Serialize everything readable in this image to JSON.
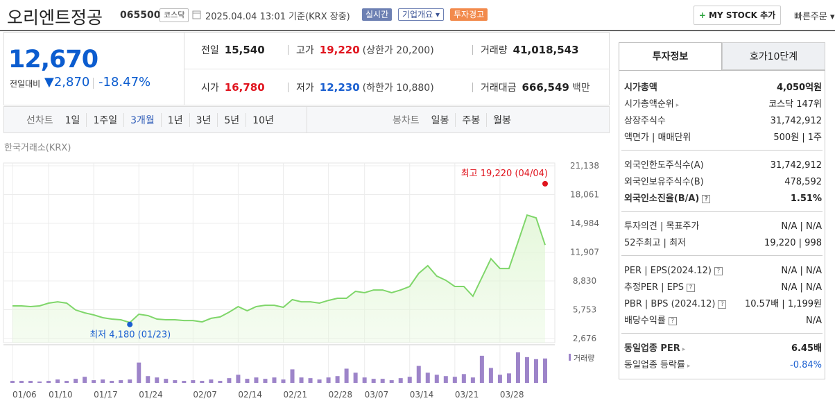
{
  "header": {
    "name": "오리엔트정공",
    "code": "065500",
    "market": "코스닥",
    "datetime": "2025.04.04 13:01 기준(KRX 장중)",
    "tags": [
      "실시간",
      "기업개요",
      "투자경고"
    ],
    "mystock": "MY STOCK 추가",
    "quick_order": "빠른주문"
  },
  "price": {
    "current": "12,670",
    "change_label": "전일대비",
    "change": "2,870",
    "change_pct": "-18.47%",
    "color": "#0b5ccf"
  },
  "summary": [
    {
      "label": "전일",
      "value": "15,540",
      "color": "#222"
    },
    {
      "label": "고가",
      "value": "19,220",
      "note": "(상한가 20,200)",
      "color": "#e0141e"
    },
    {
      "label": "거래량",
      "value": "41,018,543",
      "color": "#222"
    },
    {
      "label": "시가",
      "value": "16,780",
      "color": "#e0141e"
    },
    {
      "label": "저가",
      "value": "12,230",
      "note": "(하한가 10,880)",
      "color": "#1a5fd0"
    },
    {
      "label": "거래대금",
      "value": "666,549",
      "note": "백만",
      "color": "#222"
    }
  ],
  "tabs": {
    "line_label": "선차트",
    "line": [
      "1일",
      "1주일",
      "3개월",
      "1년",
      "3년",
      "5년",
      "10년"
    ],
    "active": "3개월",
    "candle_label": "봉차트",
    "candle": [
      "일봉",
      "주봉",
      "월봉"
    ]
  },
  "chart_data": {
    "type": "line",
    "source": "한국거래소(KRX)",
    "categories": [
      "01/06",
      null,
      null,
      null,
      "01/10",
      null,
      null,
      null,
      null,
      "01/17",
      null,
      null,
      null,
      null,
      "01/24",
      null,
      null,
      null,
      null,
      null,
      "02/07",
      null,
      null,
      null,
      null,
      "02/14",
      null,
      null,
      null,
      null,
      "02/21",
      null,
      null,
      null,
      null,
      "02/28",
      null,
      null,
      null,
      "03/07",
      null,
      null,
      null,
      null,
      "03/14",
      null,
      null,
      null,
      null,
      "03/21",
      null,
      null,
      null,
      null,
      "03/28",
      null,
      null,
      null,
      null,
      null
    ],
    "values": [
      6160,
      6160,
      6090,
      6160,
      6460,
      6600,
      6460,
      5720,
      5420,
      5200,
      4900,
      4750,
      4680,
      4380,
      5270,
      5120,
      4750,
      4680,
      4680,
      4600,
      4600,
      4450,
      4830,
      4980,
      5490,
      6090,
      5640,
      6090,
      6230,
      6230,
      6010,
      6830,
      6600,
      6600,
      6460,
      6750,
      6980,
      6980,
      7720,
      7570,
      7860,
      7860,
      7570,
      7860,
      8240,
      9640,
      10460,
      9350,
      8900,
      8240,
      8240,
      7200,
      9200,
      11200,
      10160,
      10160,
      12980,
      15870,
      15580,
      12670
    ],
    "color": "#7fd66a",
    "fill": "#e3f7d8",
    "ylim": [
      2676,
      21138
    ],
    "yticks": [
      {
        "value": 2676,
        "label": "2,676"
      },
      {
        "value": 5753,
        "label": "5,753"
      },
      {
        "value": 8830,
        "label": "8,830"
      },
      {
        "value": 11907,
        "label": "11,907"
      },
      {
        "value": 14984,
        "label": "14,984"
      },
      {
        "value": 18061,
        "label": "18,061"
      },
      {
        "value": 21138,
        "label": "21,138"
      }
    ],
    "grid": true,
    "volume": {
      "name": "거래량",
      "color": "#9d84c9",
      "values": [
        3420000,
        3420000,
        3420000,
        2280000,
        3420000,
        5700000,
        3420000,
        6840000,
        10260000,
        4560000,
        5700000,
        3420000,
        4560000,
        5700000,
        34200000,
        11400000,
        9120000,
        6840000,
        4560000,
        3420000,
        4560000,
        3420000,
        5700000,
        3420000,
        7980000,
        13680000,
        6840000,
        9120000,
        6840000,
        9120000,
        5700000,
        22800000,
        9120000,
        7980000,
        5700000,
        9120000,
        11400000,
        23940000,
        17100000,
        9120000,
        6840000,
        6840000,
        4560000,
        7980000,
        10260000,
        28500000,
        17100000,
        13680000,
        11400000,
        10260000,
        14820000,
        9120000,
        45600000,
        25080000,
        13680000,
        15960000,
        51300000,
        43320000,
        39900000,
        41018543
      ]
    },
    "annotations": [
      {
        "label": "최고 19,220 (04/04)",
        "value": 19220,
        "at": 59,
        "color": "#e0141e"
      },
      {
        "label": "최저 4,180 (01/23)",
        "value": 4180,
        "at": 13,
        "color": "#1a5fd0"
      }
    ]
  },
  "panel": {
    "tabs": [
      "투자정보",
      "호가10단계"
    ],
    "groups": [
      [
        {
          "label": "시가총액",
          "value": "4,050억원",
          "bold": true
        },
        {
          "label": "시가총액순위",
          "value": "코스닥 147위",
          "more": true
        },
        {
          "label": "상장주식수",
          "value": "31,742,912"
        },
        {
          "label": "액면가 | 매매단위",
          "value": "500원 | 1주"
        }
      ],
      [
        {
          "label": "외국인한도주식수(A)",
          "value": "31,742,912"
        },
        {
          "label": "외국인보유주식수(B)",
          "value": "478,592"
        },
        {
          "label": "외국인소진율(B/A)",
          "value": "1.51%",
          "bold": true,
          "help": true
        }
      ],
      [
        {
          "label": "투자의견 | 목표주가",
          "value": "N/A | N/A"
        },
        {
          "label": "52주최고 | 최저",
          "value": "19,220 | 998"
        }
      ],
      [
        {
          "label": "PER | EPS(2024.12)",
          "value": "N/A | N/A",
          "help": true
        },
        {
          "label": "추정PER | EPS",
          "value": "N/A | N/A",
          "help": true
        },
        {
          "label": "PBR | BPS (2024.12)",
          "value": "10.57배 | 1,199원",
          "help": true
        },
        {
          "label": "배당수익률",
          "value": "N/A",
          "help": true
        }
      ],
      [
        {
          "label": "동일업종 PER",
          "value": "6.45배",
          "bold": true,
          "more": true
        },
        {
          "label": "동일업종 등락률",
          "value": "-0.84%",
          "more": true,
          "color": "#1a5fd0"
        }
      ]
    ]
  }
}
